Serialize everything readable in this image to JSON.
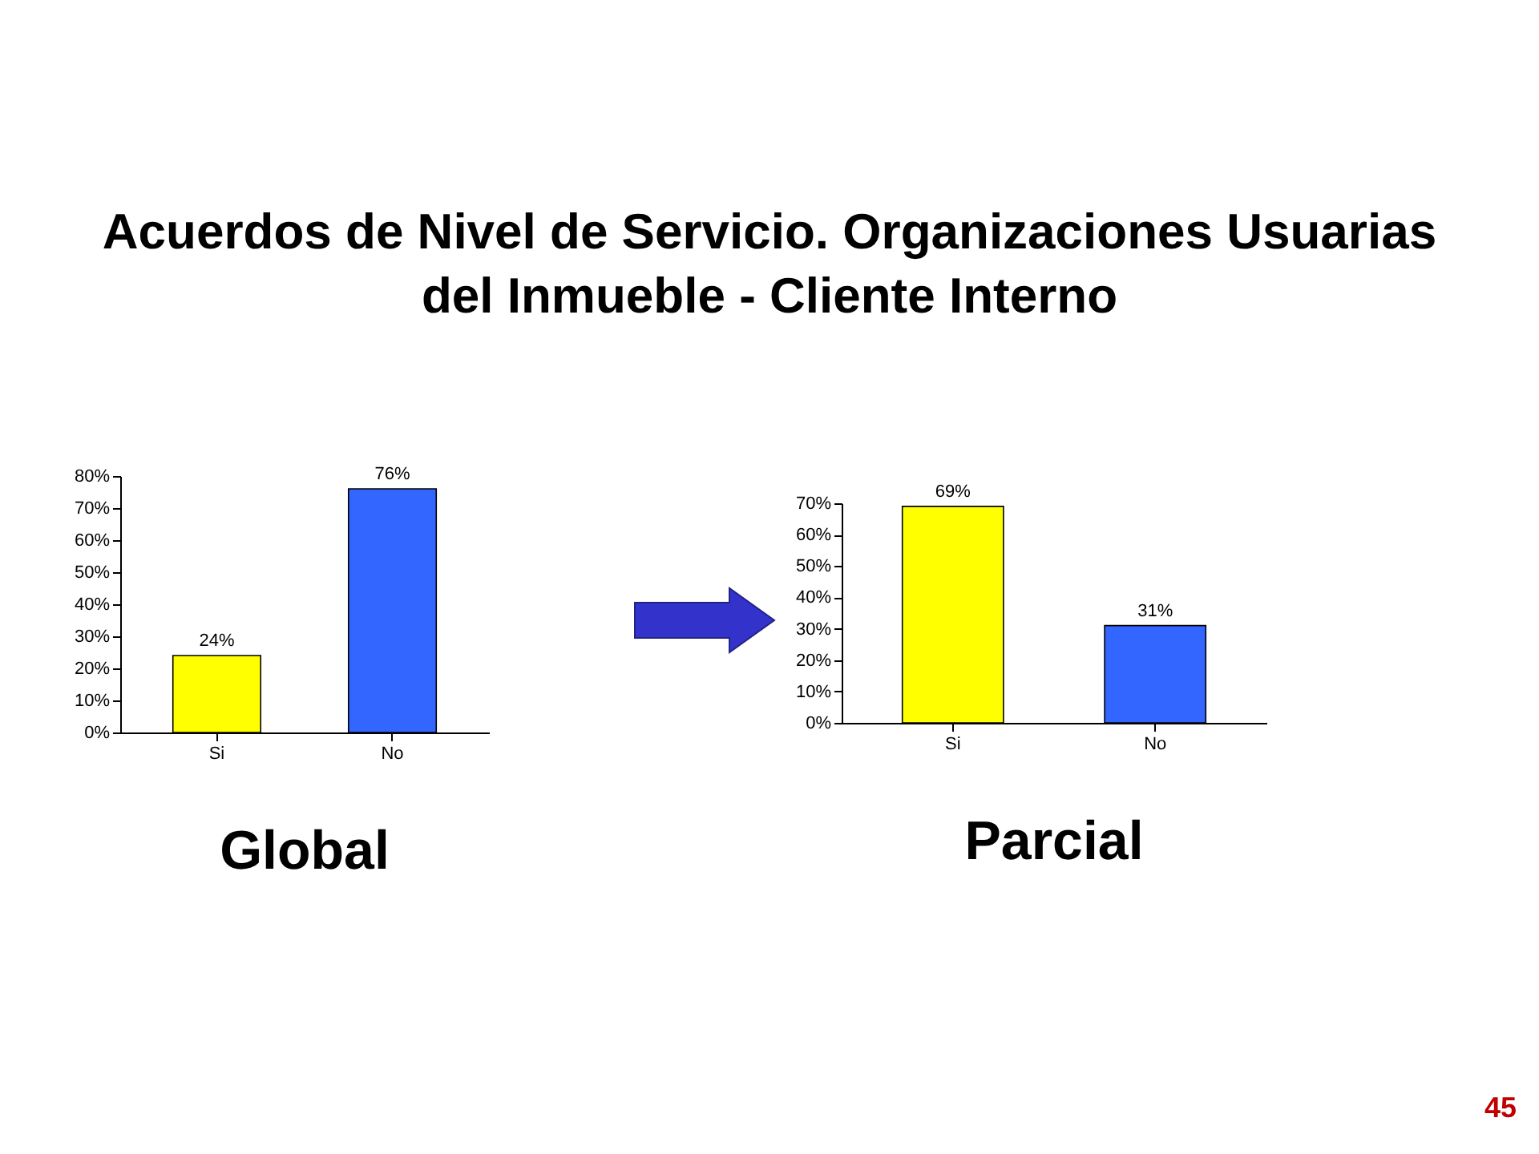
{
  "chart_data": [
    {
      "type": "bar",
      "title": "Acuerdos de Nivel de Servicio. Organizaciones Usuarias del Inmueble - Cliente Interno",
      "xlabel": "Global",
      "categories": [
        "Si",
        "No"
      ],
      "values": [
        24,
        76
      ],
      "colors": [
        "#ffff00",
        "#3366ff"
      ],
      "value_labels": [
        "24%",
        "76%"
      ],
      "ylim": [
        0,
        80
      ],
      "yticks": [
        {
          "value": 0,
          "label": "0%"
        },
        {
          "value": 10,
          "label": "10%"
        },
        {
          "value": 20,
          "label": "20%"
        },
        {
          "value": 30,
          "label": "30%"
        },
        {
          "value": 40,
          "label": "40%"
        },
        {
          "value": 50,
          "label": "50%"
        },
        {
          "value": 60,
          "label": "60%"
        },
        {
          "value": 70,
          "label": "70%"
        },
        {
          "value": 80,
          "label": "80%"
        }
      ],
      "annotations": [
        "45"
      ]
    },
    {
      "type": "bar",
      "xlabel": "Parcial",
      "categories": [
        "Si",
        "No"
      ],
      "values": [
        69,
        31
      ],
      "colors": [
        "#ffff00",
        "#3366ff"
      ],
      "value_labels": [
        "69%",
        "31%"
      ],
      "ylim": [
        0,
        70
      ],
      "yticks": [
        {
          "value": 0,
          "label": "0%"
        },
        {
          "value": 10,
          "label": "10%"
        },
        {
          "value": 20,
          "label": "20%"
        },
        {
          "value": 30,
          "label": "30%"
        },
        {
          "value": 40,
          "label": "40%"
        },
        {
          "value": 50,
          "label": "50%"
        },
        {
          "value": 60,
          "label": "60%"
        },
        {
          "value": 70,
          "label": "70%"
        }
      ]
    }
  ]
}
